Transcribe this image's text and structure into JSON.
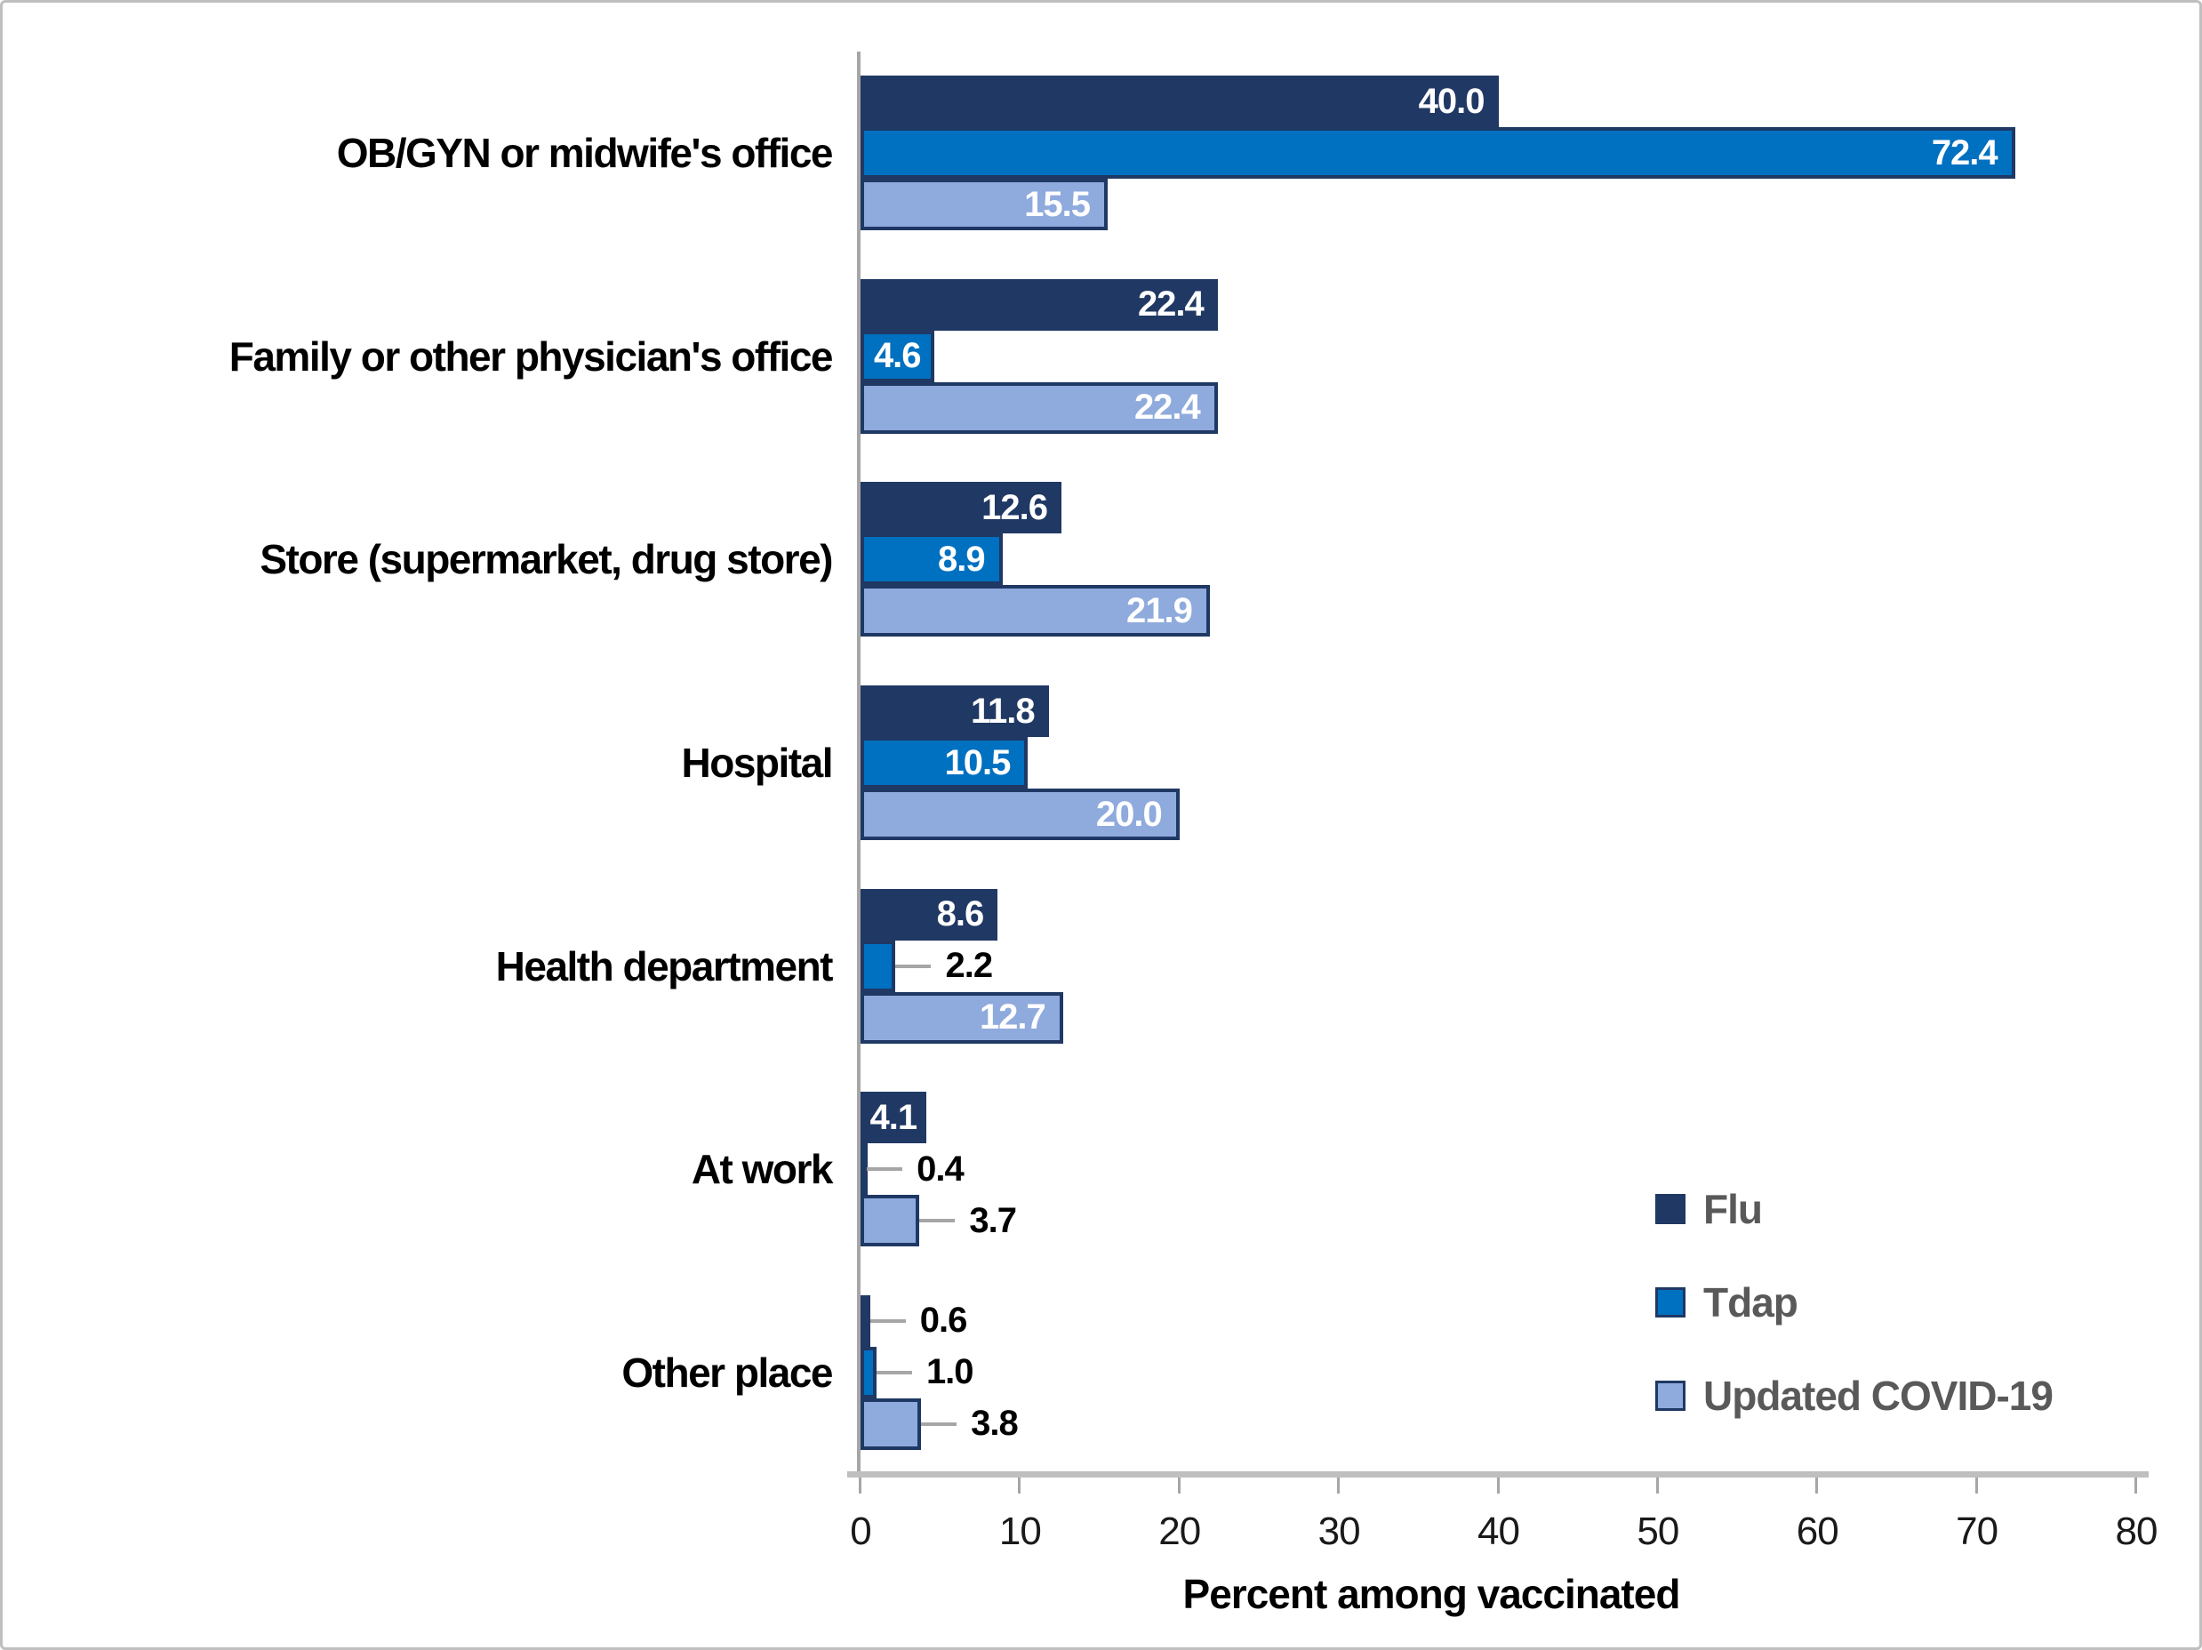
{
  "chart_data": {
    "type": "bar",
    "orientation": "horizontal",
    "title": "",
    "xlabel": "Percent among vaccinated",
    "ylabel": "",
    "xlim": [
      0,
      80
    ],
    "x_ticks": [
      0,
      10,
      20,
      30,
      40,
      50,
      60,
      70,
      80
    ],
    "grid": false,
    "legend_position": "bottom-right",
    "categories": [
      "OB/GYN or midwife's office",
      "Family or other physician's office",
      "Store (supermarket, drug store)",
      "Hospital",
      "Health department",
      "At work",
      "Other place"
    ],
    "series": [
      {
        "name": "Flu",
        "color": "#203864",
        "border_color": "#203864",
        "values": [
          40.0,
          22.4,
          12.6,
          11.8,
          8.6,
          4.1,
          0.6
        ],
        "label_outside": [
          false,
          false,
          false,
          false,
          false,
          false,
          true
        ]
      },
      {
        "name": "Tdap",
        "color": "#0070C0",
        "border_color": "#1F3864",
        "values": [
          72.4,
          4.6,
          8.9,
          10.5,
          2.2,
          0.4,
          1.0
        ],
        "label_outside": [
          false,
          false,
          false,
          false,
          true,
          true,
          true
        ]
      },
      {
        "name": "Updated COVID-19",
        "color": "#8FAADC",
        "border_color": "#1F3864",
        "values": [
          15.5,
          22.4,
          21.9,
          20.0,
          12.7,
          3.7,
          3.8
        ],
        "label_outside": [
          false,
          false,
          false,
          false,
          false,
          true,
          true
        ]
      }
    ]
  },
  "style": {
    "background": "#FFFFFF",
    "frame_border_color": "#BFBFBF",
    "inside_label_color": "#FFFFFF",
    "outside_label_color": "#000000",
    "y_axis_line_color": "#A6A6A6",
    "x_axis_line_color": "#BFBFBF",
    "tick_color": "#A6A6A6",
    "tick_label_color": "#1A1A1A",
    "category_label_color": "#000000",
    "legend_text_color": "#595959",
    "whisker_color": "#A6A6A6"
  }
}
